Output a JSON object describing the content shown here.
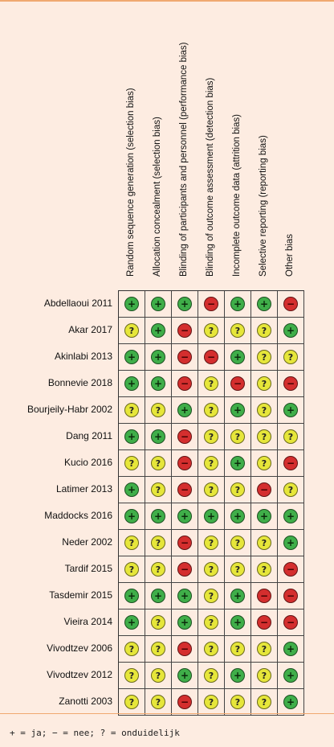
{
  "columns": [
    "Random sequence generation (selection bias)",
    "Allocation concealment (selection bias)",
    "Blinding of participants and personnel (performance bias)",
    "Blinding of outcome assessment (detection bias)",
    "Incomplete outcome data (attrition bias)",
    "Selective reporting (reporting bias)",
    "Other bias"
  ],
  "rows": [
    {
      "study": "Abdellaoui 2011",
      "cells": [
        "+",
        "+",
        "+",
        "-",
        "+",
        "+",
        "-"
      ]
    },
    {
      "study": "Akar 2017",
      "cells": [
        "?",
        "+",
        "-",
        "?",
        "?",
        "?",
        "+"
      ]
    },
    {
      "study": "Akinlabi 2013",
      "cells": [
        "+",
        "+",
        "-",
        "-",
        "+",
        "?",
        "?"
      ]
    },
    {
      "study": "Bonnevie 2018",
      "cells": [
        "+",
        "+",
        "-",
        "?",
        "-",
        "?",
        "-"
      ]
    },
    {
      "study": "Bourjeily-Habr 2002",
      "cells": [
        "?",
        "?",
        "+",
        "?",
        "+",
        "?",
        "+"
      ]
    },
    {
      "study": "Dang 2011",
      "cells": [
        "+",
        "+",
        "-",
        "?",
        "?",
        "?",
        "?"
      ]
    },
    {
      "study": "Kucio 2016",
      "cells": [
        "?",
        "?",
        "-",
        "?",
        "+",
        "?",
        "-"
      ]
    },
    {
      "study": "Latimer 2013",
      "cells": [
        "+",
        "?",
        "-",
        "?",
        "?",
        "-",
        "?"
      ]
    },
    {
      "study": "Maddocks 2016",
      "cells": [
        "+",
        "+",
        "+",
        "+",
        "+",
        "+",
        "+"
      ]
    },
    {
      "study": "Neder 2002",
      "cells": [
        "?",
        "?",
        "-",
        "?",
        "?",
        "?",
        "+"
      ]
    },
    {
      "study": "Tardif 2015",
      "cells": [
        "?",
        "?",
        "-",
        "?",
        "?",
        "?",
        "-"
      ]
    },
    {
      "study": "Tasdemir 2015",
      "cells": [
        "+",
        "+",
        "+",
        "?",
        "+",
        "-",
        "-"
      ]
    },
    {
      "study": "Vieira 2014",
      "cells": [
        "+",
        "?",
        "+",
        "?",
        "+",
        "-",
        "-"
      ]
    },
    {
      "study": "Vivodtzev 2006",
      "cells": [
        "?",
        "?",
        "-",
        "?",
        "?",
        "?",
        "+"
      ]
    },
    {
      "study": "Vivodtzev 2012",
      "cells": [
        "?",
        "?",
        "+",
        "?",
        "+",
        "?",
        "+"
      ]
    },
    {
      "study": "Zanotti 2003",
      "cells": [
        "?",
        "?",
        "-",
        "?",
        "?",
        "?",
        "+"
      ]
    }
  ],
  "symbols": {
    "plus": {
      "glyph": "+",
      "color": "#3fae49"
    },
    "minus": {
      "glyph": "−",
      "color": "#d42e2e"
    },
    "unclear": {
      "glyph": "?",
      "color": "#e6e63a"
    }
  },
  "legend": "+ = ja; − = nee; ? = onduidelijk"
}
